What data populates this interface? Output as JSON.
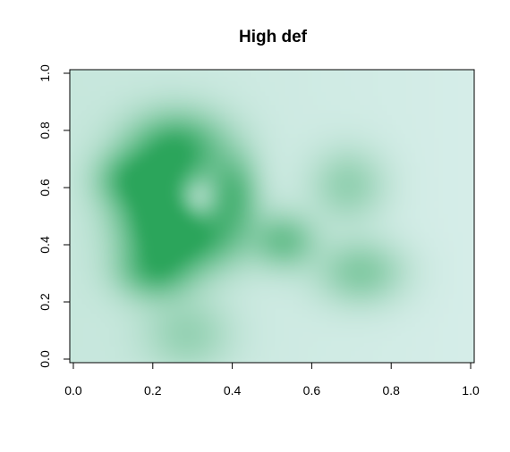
{
  "chart_data": {
    "type": "heatmap",
    "title": "High def",
    "xlabel": "",
    "ylabel": "",
    "xlim": [
      0.0,
      1.0
    ],
    "ylim": [
      0.0,
      1.0
    ],
    "x_ticks": [
      "0.0",
      "0.2",
      "0.4",
      "0.6",
      "0.8",
      "1.0"
    ],
    "y_ticks": [
      "0.0",
      "0.2",
      "0.4",
      "0.6",
      "0.8",
      "1.0"
    ],
    "grid": false,
    "legend": "none",
    "colors": {
      "low": "#e3f3f4",
      "high": "#2ba55b"
    },
    "density_blobs": [
      {
        "x": 0.23,
        "y": 0.52,
        "sx": 0.07,
        "sy": 0.12,
        "value": 1.0
      },
      {
        "x": 0.28,
        "y": 0.72,
        "sx": 0.08,
        "sy": 0.08,
        "value": 0.8
      },
      {
        "x": 0.33,
        "y": 0.44,
        "sx": 0.08,
        "sy": 0.08,
        "value": 0.75
      },
      {
        "x": 0.41,
        "y": 0.58,
        "sx": 0.04,
        "sy": 0.08,
        "value": 0.6
      },
      {
        "x": 0.22,
        "y": 0.32,
        "sx": 0.06,
        "sy": 0.06,
        "value": 0.55
      },
      {
        "x": 0.53,
        "y": 0.42,
        "sx": 0.05,
        "sy": 0.06,
        "value": 0.55
      },
      {
        "x": 0.71,
        "y": 0.32,
        "sx": 0.07,
        "sy": 0.07,
        "value": 0.45
      },
      {
        "x": 0.68,
        "y": 0.6,
        "sx": 0.06,
        "sy": 0.08,
        "value": 0.35
      },
      {
        "x": 0.3,
        "y": 0.12,
        "sx": 0.07,
        "sy": 0.08,
        "value": 0.3
      },
      {
        "x": 0.15,
        "y": 0.62,
        "sx": 0.05,
        "sy": 0.06,
        "value": 0.45
      }
    ],
    "holes": [
      {
        "x": 0.32,
        "y": 0.55,
        "sx": 0.035,
        "sy": 0.05,
        "value": 0.55
      }
    ]
  }
}
